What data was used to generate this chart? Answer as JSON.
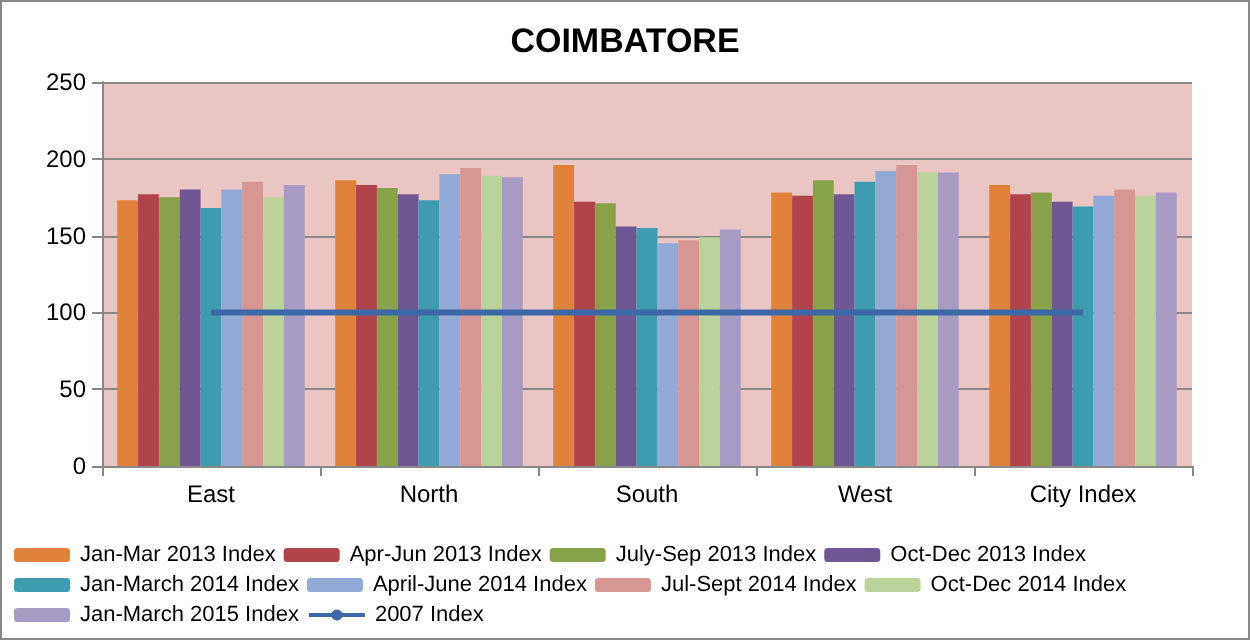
{
  "chart_data": {
    "type": "bar",
    "title": "COIMBATORE",
    "categories": [
      "East",
      "North",
      "South",
      "West",
      "City Index"
    ],
    "series": [
      {
        "name": "Jan-Mar 2013 Index",
        "color": "#e0823a",
        "values": [
          173,
          186,
          196,
          178,
          183
        ]
      },
      {
        "name": "Apr-Jun 2013 Index",
        "color": "#b0444a",
        "values": [
          177,
          183,
          172,
          176,
          177
        ]
      },
      {
        "name": "July-Sep 2013 Index",
        "color": "#88a24a",
        "values": [
          175,
          181,
          171,
          186,
          178
        ]
      },
      {
        "name": "Oct-Dec 2013 Index",
        "color": "#6f5793",
        "values": [
          180,
          177,
          156,
          177,
          172
        ]
      },
      {
        "name": "Jan-March 2014 Index",
        "color": "#3f9bb0",
        "values": [
          168,
          173,
          155,
          185,
          169
        ]
      },
      {
        "name": "April-June 2014 Index",
        "color": "#93aad6",
        "values": [
          180,
          190,
          145,
          192,
          176
        ]
      },
      {
        "name": "Jul-Sept 2014 Index",
        "color": "#d69694",
        "values": [
          185,
          194,
          147,
          196,
          180
        ]
      },
      {
        "name": "Oct-Dec 2014 Index",
        "color": "#bbd39a",
        "values": [
          175,
          189,
          149,
          191,
          176
        ]
      },
      {
        "name": "Jan-March 2015 Index",
        "color": "#a79bc4",
        "values": [
          183,
          188,
          154,
          191,
          178
        ]
      },
      {
        "name": "2007 Index",
        "type": "line",
        "color": "#3d68a8",
        "values": [
          100,
          100,
          100,
          100,
          100
        ]
      }
    ],
    "ylim": [
      0,
      250
    ],
    "yticks": [
      0,
      50,
      100,
      150,
      200,
      250
    ],
    "grid": "y",
    "legend": "bottom",
    "marker": "none"
  }
}
